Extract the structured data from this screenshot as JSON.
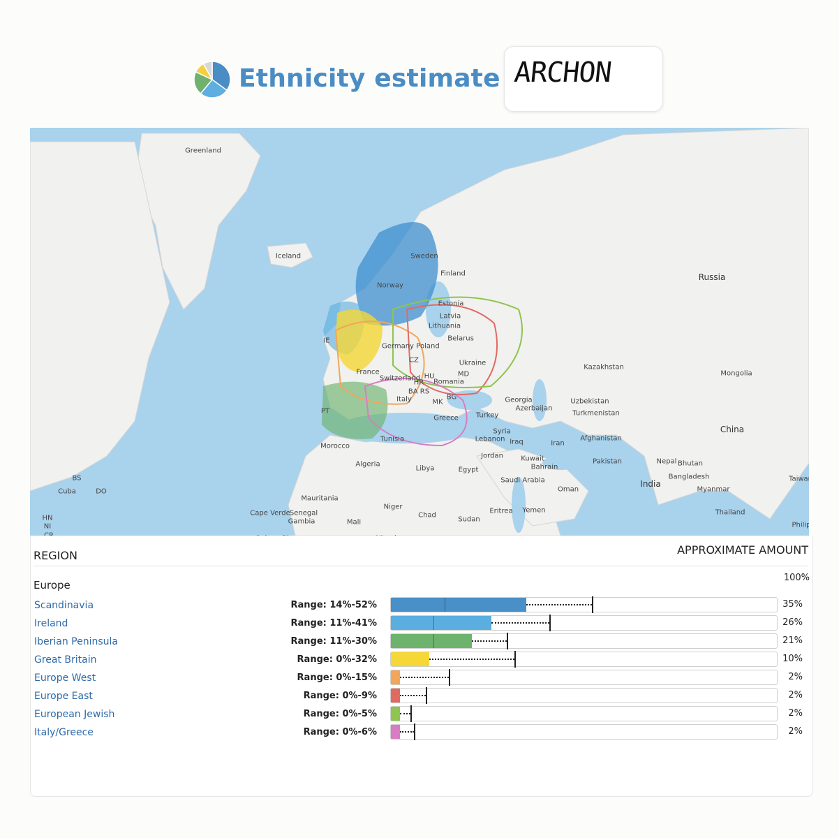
{
  "header": {
    "title": "Ethnicity estimate for",
    "name": "ARCHON",
    "pie_colors": [
      "#4a8cc4",
      "#5eaee0",
      "#6fb26f",
      "#f4d03f",
      "#d8d8d8"
    ]
  },
  "map": {
    "labels": [
      {
        "text": "Greenland",
        "size": "small"
      },
      {
        "text": "Iceland",
        "size": "small"
      },
      {
        "text": "Sweden",
        "size": "small"
      },
      {
        "text": "Norway",
        "size": "small"
      },
      {
        "text": "Finland",
        "size": "small"
      },
      {
        "text": "Estonia",
        "size": "small"
      },
      {
        "text": "Latvia",
        "size": "small"
      },
      {
        "text": "Lithuania",
        "size": "small"
      },
      {
        "text": "Belarus",
        "size": "small"
      },
      {
        "text": "Germany",
        "size": "small"
      },
      {
        "text": "Poland",
        "size": "small"
      },
      {
        "text": "CZ",
        "size": "small"
      },
      {
        "text": "Ukraine",
        "size": "small"
      },
      {
        "text": "MD",
        "size": "small"
      },
      {
        "text": "France",
        "size": "small"
      },
      {
        "text": "Switzerland",
        "size": "small"
      },
      {
        "text": "HU",
        "size": "small"
      },
      {
        "text": "HR",
        "size": "small"
      },
      {
        "text": "Romania",
        "size": "small"
      },
      {
        "text": "BA RS",
        "size": "small"
      },
      {
        "text": "BG",
        "size": "small"
      },
      {
        "text": "MK",
        "size": "small"
      },
      {
        "text": "Italy",
        "size": "small"
      },
      {
        "text": "Greece",
        "size": "small"
      },
      {
        "text": "Turkey",
        "size": "small"
      },
      {
        "text": "Georgia",
        "size": "small"
      },
      {
        "text": "Azerbaijan",
        "size": "small"
      },
      {
        "text": "Russia",
        "size": "big"
      },
      {
        "text": "Kazakhstan",
        "size": "small"
      },
      {
        "text": "Uzbekistan",
        "size": "small"
      },
      {
        "text": "Turkmenistan",
        "size": "small"
      },
      {
        "text": "Mongolia",
        "size": "small"
      },
      {
        "text": "China",
        "size": "big"
      },
      {
        "text": "Afghanistan",
        "size": "small"
      },
      {
        "text": "Pakistan",
        "size": "small"
      },
      {
        "text": "Nepal",
        "size": "small"
      },
      {
        "text": "Bhutan",
        "size": "small"
      },
      {
        "text": "Bangladesh",
        "size": "small"
      },
      {
        "text": "Myanmar",
        "size": "small"
      },
      {
        "text": "India",
        "size": "big"
      },
      {
        "text": "Thailand",
        "size": "small"
      },
      {
        "text": "Syria",
        "size": "small"
      },
      {
        "text": "Lebanon",
        "size": "small"
      },
      {
        "text": "Iraq",
        "size": "small"
      },
      {
        "text": "Iran",
        "size": "small"
      },
      {
        "text": "Jordan",
        "size": "small"
      },
      {
        "text": "Kuwait",
        "size": "small"
      },
      {
        "text": "Bahrain",
        "size": "small"
      },
      {
        "text": "Saudi Arabia",
        "size": "small"
      },
      {
        "text": "Oman",
        "size": "small"
      },
      {
        "text": "Yemen",
        "size": "small"
      },
      {
        "text": "Eritrea",
        "size": "small"
      },
      {
        "text": "Sudan",
        "size": "small"
      },
      {
        "text": "Egypt",
        "size": "small"
      },
      {
        "text": "Libya",
        "size": "small"
      },
      {
        "text": "Chad",
        "size": "small"
      },
      {
        "text": "Niger",
        "size": "small"
      },
      {
        "text": "Mali",
        "size": "small"
      },
      {
        "text": "Algeria",
        "size": "small"
      },
      {
        "text": "Morocco",
        "size": "small"
      },
      {
        "text": "Tunisia",
        "size": "small"
      },
      {
        "text": "Mauritania",
        "size": "small"
      },
      {
        "text": "Senegal",
        "size": "small"
      },
      {
        "text": "Gambia",
        "size": "small"
      },
      {
        "text": "Cape Verde",
        "size": "small"
      },
      {
        "text": "Cuba",
        "size": "small"
      },
      {
        "text": "BS",
        "size": "small"
      },
      {
        "text": "DO",
        "size": "small"
      },
      {
        "text": "HN",
        "size": "small"
      },
      {
        "text": "NI",
        "size": "small"
      },
      {
        "text": "CR",
        "size": "small"
      },
      {
        "text": "Taiwan",
        "size": "small"
      },
      {
        "text": "Philip",
        "size": "small"
      },
      {
        "text": "IE",
        "size": "small"
      },
      {
        "text": "PT",
        "size": "small"
      },
      {
        "text": "Guinea-Bissau",
        "size": "small"
      },
      {
        "text": "Nigeria",
        "size": "small"
      }
    ]
  },
  "table": {
    "region_header": "REGION",
    "amount_header": "APPROXIMATE AMOUNT",
    "group": "Europe",
    "group_pct": "100%"
  },
  "chart_data": {
    "type": "bar",
    "xlim": [
      0,
      100
    ],
    "categories": [
      "Scandinavia",
      "Ireland",
      "Iberian Peninsula",
      "Great Britain",
      "Europe West",
      "Europe East",
      "European Jewish",
      "Italy/Greece"
    ],
    "values": [
      35,
      26,
      21,
      10,
      2,
      2,
      2,
      2
    ],
    "value_labels": [
      "35%",
      "26%",
      "21%",
      "10%",
      "2%",
      "2%",
      "2%",
      "2%"
    ],
    "ranges": [
      [
        14,
        52
      ],
      [
        11,
        41
      ],
      [
        11,
        30
      ],
      [
        0,
        32
      ],
      [
        0,
        15
      ],
      [
        0,
        9
      ],
      [
        0,
        5
      ],
      [
        0,
        6
      ]
    ],
    "range_labels": [
      "Range: 14%-52%",
      "Range: 11%-41%",
      "Range: 11%-30%",
      "Range: 0%-32%",
      "Range: 0%-15%",
      "Range: 0%-9%",
      "Range: 0%-5%",
      "Range: 0%-6%"
    ],
    "colors": [
      "#4a90c8",
      "#5aaee0",
      "#6db36d",
      "#f5d736",
      "#f2a65a",
      "#e06a62",
      "#8fc44f",
      "#d87cc4"
    ]
  }
}
